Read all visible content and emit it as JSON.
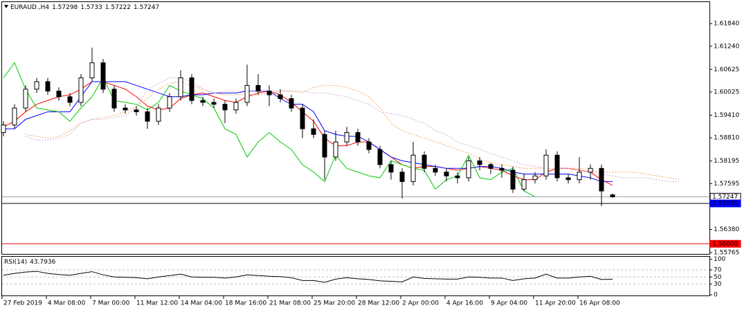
{
  "chart_data": [
    {
      "type": "candlestick",
      "title": "EURAUD.,H4",
      "categories": [
        "27 Feb 2019",
        null,
        null,
        null,
        "4 Mar 08:00",
        null,
        null,
        null,
        "7 Mar 00:00",
        null,
        null,
        null,
        "11 Mar 12:00",
        null,
        null,
        null,
        "14 Mar 04:00",
        null,
        null,
        null,
        "18 Mar 16:00",
        null,
        null,
        null,
        "21 Mar 08:00",
        null,
        null,
        null,
        "25 Mar 20:00",
        null,
        null,
        null,
        "28 Mar 12:00",
        null,
        null,
        null,
        "2 Apr 00:00",
        null,
        null,
        null,
        "4 Apr 16:00",
        null,
        null,
        null,
        "9 Apr 04:00",
        null,
        null,
        null,
        "11 Apr 20:00",
        null,
        null,
        null,
        "16 Apr 08:00",
        null,
        null,
        null,
        null,
        null,
        null,
        null,
        null,
        null
      ],
      "open": [
        1.5895,
        1.5915,
        1.596,
        1.601,
        1.603,
        1.6005,
        1.599,
        1.5975,
        1.604,
        1.608,
        1.601,
        1.596,
        1.5955,
        1.595,
        1.5925,
        1.596,
        1.599,
        1.604,
        1.598,
        1.5975,
        1.597,
        1.5955,
        1.5975,
        1.602,
        1.6005,
        1.5995,
        1.5985,
        1.596,
        1.5905,
        1.589,
        1.583,
        1.587,
        1.5895,
        1.587,
        1.585,
        1.581,
        1.579,
        1.5765,
        1.5835,
        1.58,
        1.579,
        1.578,
        1.5775,
        1.582,
        1.581,
        1.58,
        1.5795,
        1.5745,
        1.577,
        1.578,
        1.5835,
        1.5775,
        1.577,
        1.579,
        1.58,
        1.57298,
        null,
        null,
        null,
        null,
        null,
        null
      ],
      "high": [
        1.5925,
        1.597,
        1.602,
        1.604,
        1.604,
        1.6015,
        1.6,
        1.605,
        1.612,
        1.609,
        1.602,
        1.597,
        1.5965,
        1.596,
        1.597,
        1.6,
        1.606,
        1.605,
        1.599,
        1.5985,
        1.598,
        1.5985,
        1.6075,
        1.605,
        1.602,
        1.601,
        1.5995,
        1.597,
        1.593,
        1.59,
        1.59,
        1.591,
        1.5905,
        1.588,
        1.586,
        1.582,
        1.58,
        1.587,
        1.5845,
        1.581,
        1.58,
        1.579,
        1.583,
        1.583,
        1.5815,
        1.581,
        1.5805,
        1.5785,
        1.579,
        1.585,
        1.5845,
        1.5785,
        1.583,
        1.581,
        1.581,
        1.5733,
        null,
        null,
        null,
        null,
        null,
        null
      ],
      "low": [
        1.5885,
        1.5905,
        1.595,
        1.6,
        1.5995,
        1.598,
        1.5965,
        1.5965,
        1.603,
        1.6,
        1.595,
        1.5945,
        1.594,
        1.5905,
        1.5915,
        1.595,
        1.598,
        1.597,
        1.5965,
        1.596,
        1.592,
        1.5945,
        1.5965,
        1.5995,
        1.5965,
        1.5975,
        1.595,
        1.588,
        1.588,
        1.577,
        1.582,
        1.586,
        1.586,
        1.584,
        1.58,
        1.577,
        1.572,
        1.5755,
        1.579,
        1.578,
        1.5765,
        1.576,
        1.5765,
        1.5795,
        1.5785,
        1.5775,
        1.5735,
        1.574,
        1.576,
        1.577,
        1.5765,
        1.576,
        1.576,
        1.577,
        1.57,
        1.57222,
        null,
        null,
        null,
        null,
        null,
        null
      ],
      "close": [
        1.5915,
        1.596,
        1.601,
        1.603,
        1.6005,
        1.599,
        1.5975,
        1.604,
        1.608,
        1.601,
        1.596,
        1.5955,
        1.595,
        1.5925,
        1.596,
        1.599,
        1.604,
        1.598,
        1.5975,
        1.597,
        1.5955,
        1.5975,
        1.602,
        1.6005,
        1.5995,
        1.5985,
        1.596,
        1.5905,
        1.589,
        1.583,
        1.587,
        1.5895,
        1.587,
        1.585,
        1.581,
        1.579,
        1.5765,
        1.5835,
        1.58,
        1.579,
        1.578,
        1.5775,
        1.582,
        1.581,
        1.58,
        1.5795,
        1.5745,
        1.577,
        1.578,
        1.5835,
        1.5775,
        1.577,
        1.579,
        1.58,
        1.574,
        1.57247,
        null,
        null,
        null,
        null,
        null,
        null
      ],
      "series": [
        {
          "color": "#ff0000",
          "values": [
            1.591,
            1.5925,
            1.595,
            1.597,
            1.598,
            1.599,
            1.5995,
            1.601,
            1.603,
            1.603,
            1.602,
            1.601,
            1.599,
            1.5965,
            1.5955,
            1.596,
            1.5985,
            1.5995,
            1.6,
            1.599,
            1.598,
            1.5975,
            1.599,
            1.6,
            1.6005,
            1.5995,
            1.5975,
            1.595,
            1.5925,
            1.588,
            1.586,
            1.586,
            1.587,
            1.587,
            1.585,
            1.583,
            1.581,
            1.58,
            1.5805,
            1.5805,
            1.58,
            1.5795,
            1.58,
            1.5805,
            1.58,
            1.5795,
            1.578,
            1.577,
            1.577,
            1.579,
            1.58,
            1.58,
            1.5795,
            1.579,
            1.577,
            1.5755,
            null,
            null,
            null,
            null,
            null,
            null
          ]
        },
        {
          "color": "#0000ff",
          "values": [
            1.5905,
            1.5905,
            1.593,
            1.594,
            1.595,
            1.595,
            1.595,
            1.599,
            1.603,
            1.603,
            1.603,
            1.603,
            1.602,
            1.601,
            1.6,
            1.599,
            1.599,
            1.5995,
            1.5995,
            1.6,
            1.6,
            1.6,
            1.6005,
            1.6005,
            1.6005,
            1.5985,
            1.597,
            1.597,
            1.595,
            1.59,
            1.589,
            1.5885,
            1.5885,
            1.587,
            1.585,
            1.583,
            1.582,
            1.5815,
            1.581,
            1.5805,
            1.58,
            1.58,
            1.58,
            1.5805,
            1.5805,
            1.58,
            1.579,
            1.5785,
            1.5785,
            1.5785,
            1.5785,
            1.5785,
            1.578,
            1.5775,
            1.5765,
            1.5765,
            null,
            null,
            null,
            null,
            null,
            null
          ]
        },
        {
          "color": "#00c800",
          "values": [
            1.604,
            1.608,
            1.601,
            1.596,
            1.5955,
            1.595,
            1.5925,
            1.596,
            1.599,
            1.604,
            1.598,
            1.5975,
            1.597,
            1.5955,
            1.5975,
            1.602,
            1.6005,
            1.5995,
            1.5985,
            1.596,
            1.5905,
            1.589,
            1.583,
            1.587,
            1.5895,
            1.587,
            1.585,
            1.581,
            1.579,
            1.5765,
            1.5835,
            1.58,
            1.579,
            1.578,
            1.5775,
            1.582,
            1.581,
            1.58,
            1.5795,
            1.5745,
            1.577,
            1.578,
            1.5835,
            1.5775,
            1.577,
            1.579,
            1.58,
            1.574,
            1.57247,
            null,
            null,
            null,
            null,
            null,
            null,
            null,
            null,
            null,
            null,
            null,
            null,
            null
          ]
        },
        {
          "color": "#f4a460",
          "dash": true,
          "values": [
            null,
            null,
            1.589,
            1.5885,
            1.588,
            1.5885,
            1.59,
            1.592,
            1.593,
            1.5935,
            1.594,
            1.595,
            1.5965,
            1.5985,
            1.601,
            1.6025,
            1.603,
            1.602,
            1.601,
            1.6,
            1.5995,
            1.5995,
            1.5995,
            1.5995,
            1.6,
            1.6005,
            1.6005,
            1.6,
            1.6015,
            1.602,
            1.602,
            1.6015,
            1.6005,
            1.599,
            1.596,
            1.592,
            1.59,
            1.589,
            1.588,
            1.587,
            1.586,
            1.585,
            1.584,
            1.5825,
            1.5815,
            1.581,
            1.5805,
            1.58,
            1.58,
            1.58,
            1.58,
            1.58,
            1.58,
            1.5795,
            1.579,
            1.579,
            1.579,
            1.579,
            1.5785,
            1.578,
            1.5775,
            1.577
          ]
        },
        {
          "color": "#d8a8d8",
          "dash": true,
          "values": [
            null,
            null,
            1.5885,
            1.5875,
            1.5875,
            1.588,
            1.589,
            1.592,
            1.593,
            1.593,
            1.5935,
            1.594,
            1.596,
            1.601,
            1.6025,
            1.604,
            1.604,
            1.603,
            1.601,
            1.6,
            1.6005,
            1.6005,
            1.6005,
            1.6005,
            1.6005,
            1.6005,
            1.6005,
            1.6005,
            1.6,
            1.6,
            1.5995,
            1.599,
            1.598,
            1.597,
            1.595,
            1.5945,
            1.594,
            1.593,
            1.592,
            1.59,
            1.589,
            1.587,
            1.586,
            1.585,
            1.584,
            1.583,
            1.582,
            1.581,
            1.5805,
            1.58,
            1.58,
            1.58,
            1.5795,
            1.579,
            1.5785,
            1.578,
            1.5775,
            1.5775,
            1.5775,
            1.577,
            1.5765,
            1.5765
          ]
        }
      ],
      "hlines": [
        {
          "value": 1.57247,
          "color": "#a0a0a0",
          "label_bg": "#ffffff",
          "label_color": "#000000"
        },
        {
          "value": 1.5707,
          "label": "1.57070",
          "color": "#000000",
          "label_bg": "#0000ff",
          "label_color": "#ffffff"
        },
        {
          "value": 1.56,
          "label": "1.56000",
          "color": "#ff0000",
          "label_bg": "#ff0000",
          "label_color": "#ffffff"
        }
      ],
      "ylim": [
        1.5573,
        1.6241
      ],
      "yticks": [
        {
          "value": 1.6184,
          "label": "1.61840"
        },
        {
          "value": 1.6124,
          "label": "1.61240"
        },
        1.60625,
        1.60025,
        {
          "value": 1.5941,
          "label": "1.59410"
        },
        {
          "value": 1.5881,
          "label": "1.58810"
        },
        1.58195,
        1.57595,
        {
          "value": 1.5638,
          "label": "1.56380"
        },
        1.55765
      ]
    },
    {
      "type": "line",
      "title": "RSI(14)",
      "series": [
        {
          "color": "#000000",
          "values": [
            55,
            60,
            64,
            66,
            60,
            57,
            55,
            60,
            65,
            56,
            50,
            49,
            48,
            45,
            50,
            54,
            58,
            50,
            49,
            49,
            47,
            50,
            56,
            54,
            52,
            51,
            48,
            40,
            40,
            35,
            44,
            48,
            45,
            43,
            39,
            38,
            36,
            50,
            46,
            45,
            44,
            44,
            50,
            49,
            47,
            47,
            40,
            45,
            47,
            58,
            47,
            47,
            50,
            52,
            43,
            43.7936,
            null,
            null,
            null,
            null,
            null,
            null
          ]
        }
      ],
      "ylim": [
        -4,
        109
      ],
      "yticks": [
        100,
        70,
        50,
        30,
        0
      ]
    }
  ]
}
